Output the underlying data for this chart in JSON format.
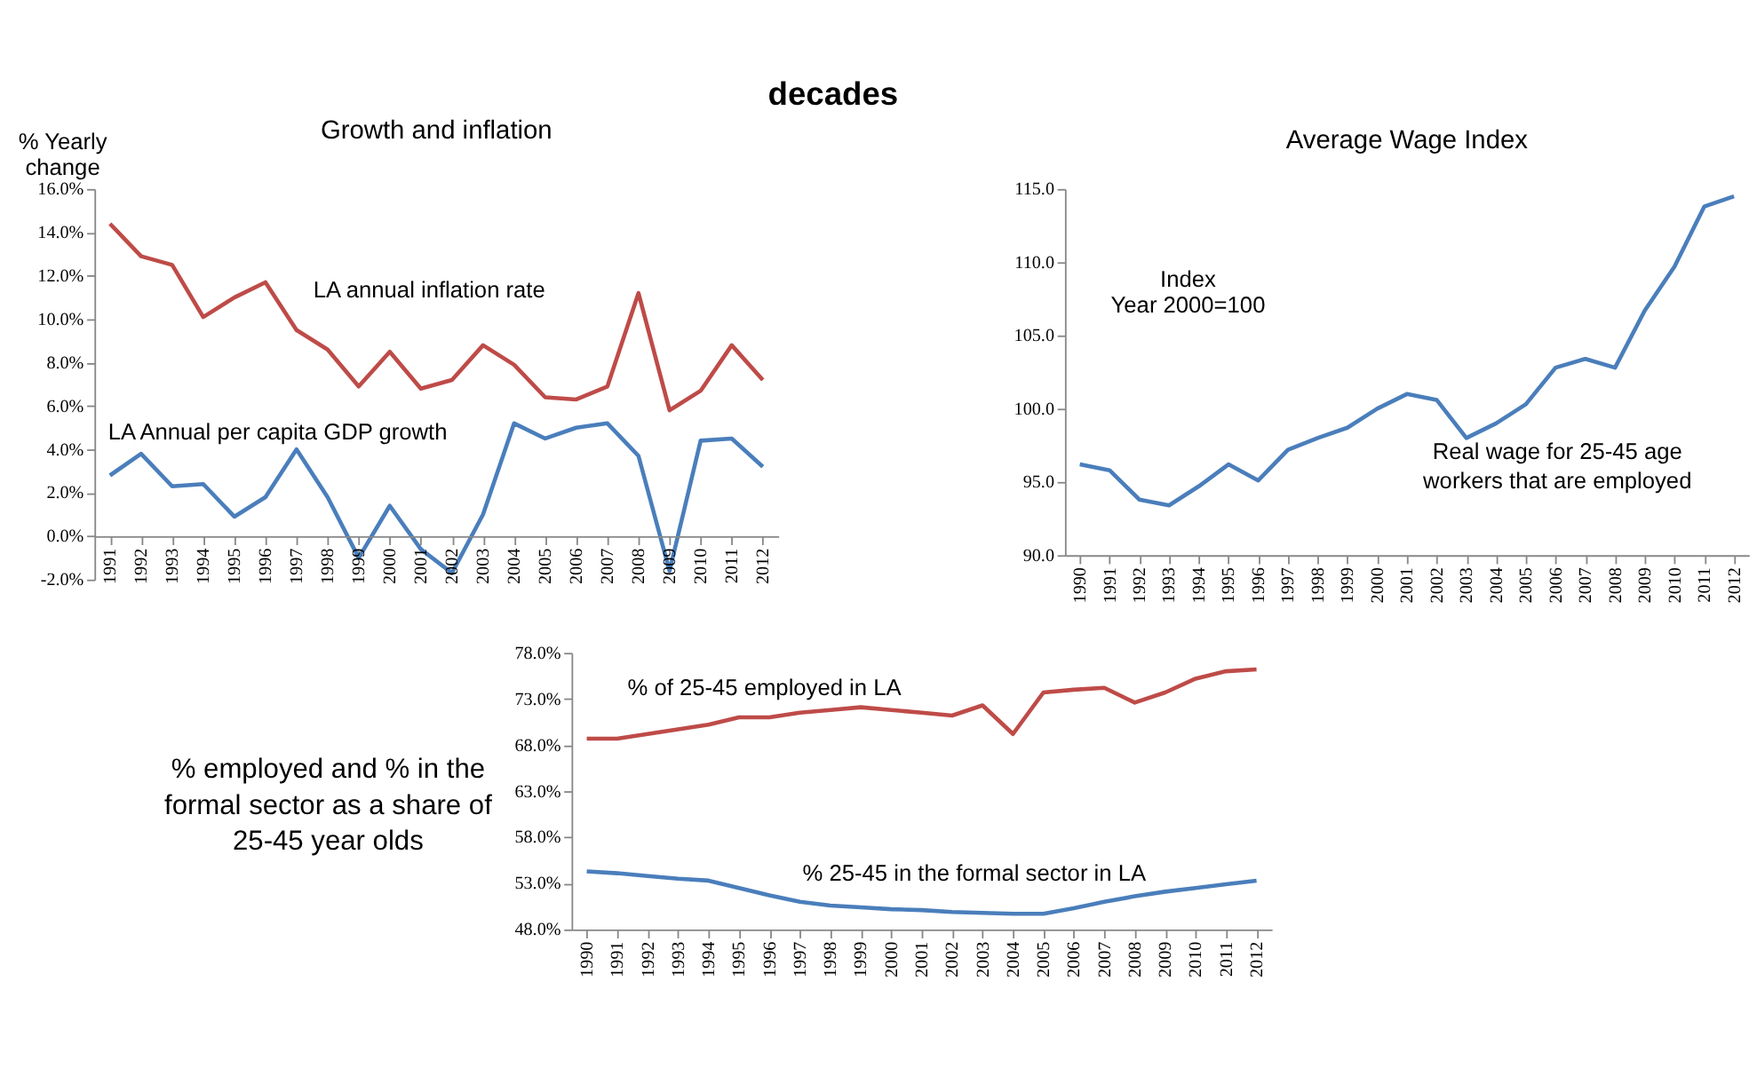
{
  "chart_data": [
    {
      "type": "line",
      "title": "Growth and inflation",
      "ylabel": "% Yearly change",
      "annotations": [
        "decades"
      ],
      "categories": [
        "1991",
        "1992",
        "1993",
        "1994",
        "1995",
        "1996",
        "1997",
        "1998",
        "1999",
        "2000",
        "2001",
        "2002",
        "2003",
        "2004",
        "2005",
        "2006",
        "2007",
        "2008",
        "2009",
        "2010",
        "2011",
        "2012"
      ],
      "series": [
        {
          "name": "LA annual inflation rate",
          "color": "#be4b48",
          "values": [
            14.4,
            12.9,
            12.5,
            10.1,
            11.0,
            11.7,
            9.5,
            8.6,
            6.9,
            8.5,
            6.8,
            7.2,
            8.8,
            7.9,
            6.4,
            6.3,
            6.9,
            11.2,
            5.8,
            6.7,
            8.8,
            7.2
          ]
        },
        {
          "name": "LA Annual per capita GDP growth",
          "color": "#4a7ebb",
          "values": [
            2.8,
            3.8,
            2.3,
            2.4,
            0.9,
            1.8,
            4.0,
            1.8,
            -1.0,
            1.4,
            -0.6,
            -1.7,
            1.0,
            5.2,
            4.5,
            5.0,
            5.2,
            3.7,
            -1.6,
            4.4,
            4.5,
            3.2
          ]
        }
      ],
      "ylim": [
        -2,
        16
      ],
      "yticks": [
        {
          "value": -2,
          "label": "-2.0%"
        },
        {
          "value": 0,
          "label": "0.0%"
        },
        {
          "value": 2,
          "label": "2.0%"
        },
        {
          "value": 4,
          "label": "4.0%"
        },
        {
          "value": 6,
          "label": "6.0%"
        },
        {
          "value": 8,
          "label": "8.0%"
        },
        {
          "value": 10,
          "label": "10.0%"
        },
        {
          "value": 12,
          "label": "12.0%"
        },
        {
          "value": 14,
          "label": "14.0%"
        },
        {
          "value": 16,
          "label": "16.0%"
        }
      ],
      "grid": false,
      "legend": false,
      "marker": "none",
      "line_style": "solid"
    },
    {
      "type": "line",
      "title": "Average Wage Index",
      "annotations": [
        "Index",
        "Year 2000=100",
        "Real wage for 25-45 age workers  that are employed"
      ],
      "categories": [
        "1990",
        "1991",
        "1992",
        "1993",
        "1994",
        "1995",
        "1996",
        "1997",
        "1998",
        "1999",
        "2000",
        "2001",
        "2002",
        "2003",
        "2004",
        "2005",
        "2006",
        "2007",
        "2008",
        "2009",
        "2010",
        "2011",
        "2012"
      ],
      "series": [
        {
          "color": "#4a7ebb",
          "values": [
            96.2,
            95.8,
            93.8,
            93.4,
            94.7,
            96.2,
            95.1,
            97.2,
            98.0,
            98.7,
            100.0,
            101.0,
            100.6,
            98.0,
            99.0,
            100.3,
            102.8,
            103.4,
            102.8,
            106.7,
            109.7,
            113.8,
            114.5
          ]
        }
      ],
      "ylim": [
        90,
        115
      ],
      "yticks": [
        {
          "value": 90,
          "label": "90.0"
        },
        {
          "value": 95,
          "label": "95.0"
        },
        {
          "value": 100,
          "label": "100.0"
        },
        {
          "value": 105,
          "label": "105.0"
        },
        {
          "value": 110,
          "label": "110.0"
        },
        {
          "value": 115,
          "label": "115.0"
        }
      ],
      "grid": false,
      "legend": false,
      "marker": "none",
      "line_style": "solid"
    },
    {
      "type": "line",
      "ylabel": "% employed and % in the formal sector as a share of 25-45 year olds",
      "categories": [
        "1990",
        "1991",
        "1992",
        "1993",
        "1994",
        "1995",
        "1996",
        "1997",
        "1998",
        "1999",
        "2000",
        "2001",
        "2002",
        "2003",
        "2004",
        "2005",
        "2006",
        "2007",
        "2008",
        "2009",
        "2010",
        "2011",
        "2012"
      ],
      "series": [
        {
          "name": "% of 25-45 employed in LA",
          "color": "#be4b48",
          "values": [
            68.7,
            68.7,
            69.2,
            69.7,
            70.2,
            71.0,
            71.0,
            71.5,
            71.8,
            72.1,
            71.8,
            71.5,
            71.2,
            72.3,
            69.2,
            73.7,
            74.0,
            74.2,
            72.6,
            73.7,
            75.2,
            76.0,
            76.2
          ]
        },
        {
          "name": "% 25-45 in the formal sector in LA",
          "color": "#4a7ebb",
          "values": [
            54.3,
            54.1,
            53.8,
            53.5,
            53.3,
            52.5,
            51.7,
            51.0,
            50.6,
            50.4,
            50.2,
            50.1,
            49.9,
            49.8,
            49.7,
            49.7,
            50.3,
            51.0,
            51.6,
            52.1,
            52.5,
            52.9,
            53.3
          ]
        }
      ],
      "ylim": [
        48,
        78
      ],
      "yticks": [
        {
          "value": 48,
          "label": "48.0%"
        },
        {
          "value": 53,
          "label": "53.0%"
        },
        {
          "value": 58,
          "label": "58.0%"
        },
        {
          "value": 63,
          "label": "63.0%"
        },
        {
          "value": 68,
          "label": "68.0%"
        },
        {
          "value": 73,
          "label": "73.0%"
        },
        {
          "value": 78,
          "label": "78.0%"
        }
      ],
      "grid": false,
      "legend": false,
      "marker": "none",
      "line_style": "solid"
    }
  ]
}
